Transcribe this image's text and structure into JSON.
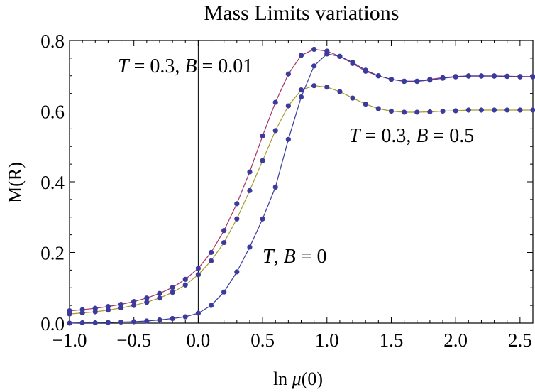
{
  "chart_data": {
    "type": "line",
    "title": "Mass Limits variations",
    "xlabel_prefix": "ln ",
    "xlabel_symbol": "μ",
    "xlabel_suffix": "(0)",
    "ylabel": "M(R)",
    "xlim": [
      -1.0,
      2.6
    ],
    "ylim": [
      0.0,
      0.8
    ],
    "xticks": [
      -1.0,
      -0.5,
      0.0,
      0.5,
      1.0,
      1.5,
      2.0,
      2.5
    ],
    "xtick_labels": [
      "−1.0",
      "−0.5",
      "0.0",
      "0.5",
      "1.0",
      "1.5",
      "2.0",
      "2.5"
    ],
    "yticks": [
      0.0,
      0.2,
      0.4,
      0.6,
      0.8
    ],
    "ytick_labels": [
      "0.0",
      "0.2",
      "0.4",
      "0.6",
      "0.8"
    ],
    "vertical_reference_line_x": 0.0,
    "marker_color": "#3b3b9e",
    "series": [
      {
        "label_parts": {
          "t": "T",
          "mid": " = 0.3, ",
          "b": "B",
          "end": " = 0.01"
        },
        "color": "#a8336a",
        "x": [
          -1.0,
          -0.9,
          -0.8,
          -0.7,
          -0.6,
          -0.5,
          -0.4,
          -0.3,
          -0.2,
          -0.1,
          0.0,
          0.1,
          0.2,
          0.3,
          0.4,
          0.5,
          0.6,
          0.7,
          0.8,
          0.9,
          1.0,
          1.1,
          1.2,
          1.3,
          1.4,
          1.5,
          1.6,
          1.7,
          1.8,
          1.9,
          2.0,
          2.1,
          2.2,
          2.3,
          2.4,
          2.5,
          2.6
        ],
        "y": [
          0.035,
          0.038,
          0.042,
          0.047,
          0.053,
          0.061,
          0.071,
          0.084,
          0.101,
          0.124,
          0.155,
          0.2,
          0.262,
          0.338,
          0.428,
          0.53,
          0.625,
          0.705,
          0.758,
          0.775,
          0.77,
          0.755,
          0.735,
          0.713,
          0.7,
          0.69,
          0.685,
          0.685,
          0.69,
          0.695,
          0.698,
          0.7,
          0.7,
          0.7,
          0.699,
          0.698,
          0.698
        ]
      },
      {
        "label_parts": {
          "t": "T",
          "mid": " = 0.3, ",
          "b": "B",
          "end": " = 0.5"
        },
        "color": "#a89a2a",
        "x": [
          -1.0,
          -0.9,
          -0.8,
          -0.7,
          -0.6,
          -0.5,
          -0.4,
          -0.3,
          -0.2,
          -0.1,
          0.0,
          0.1,
          0.2,
          0.3,
          0.4,
          0.5,
          0.6,
          0.7,
          0.8,
          0.9,
          1.0,
          1.1,
          1.2,
          1.3,
          1.4,
          1.5,
          1.6,
          1.7,
          1.8,
          1.9,
          2.0,
          2.1,
          2.2,
          2.3,
          2.4,
          2.5,
          2.6
        ],
        "y": [
          0.026,
          0.029,
          0.032,
          0.037,
          0.043,
          0.05,
          0.059,
          0.071,
          0.087,
          0.108,
          0.137,
          0.176,
          0.228,
          0.295,
          0.375,
          0.46,
          0.545,
          0.615,
          0.66,
          0.672,
          0.668,
          0.655,
          0.637,
          0.62,
          0.607,
          0.6,
          0.597,
          0.597,
          0.598,
          0.6,
          0.601,
          0.603,
          0.603,
          0.603,
          0.603,
          0.603,
          0.603
        ]
      },
      {
        "label_parts": {
          "t": "T",
          "mid": ", ",
          "b": "B",
          "end": " = 0"
        },
        "color": "#3b3b9e",
        "x": [
          -1.0,
          -0.9,
          -0.8,
          -0.7,
          -0.6,
          -0.5,
          -0.4,
          -0.3,
          -0.2,
          -0.1,
          0.0,
          0.1,
          0.2,
          0.3,
          0.4,
          0.5,
          0.6,
          0.7,
          0.8,
          0.9,
          1.0,
          1.1,
          1.2,
          1.3,
          1.4,
          1.5,
          1.6,
          1.7,
          1.8,
          1.9,
          2.0,
          2.1,
          2.2,
          2.3,
          2.4,
          2.5,
          2.6
        ],
        "y": [
          0.0,
          0.001,
          0.001,
          0.002,
          0.003,
          0.004,
          0.006,
          0.009,
          0.013,
          0.018,
          0.028,
          0.05,
          0.088,
          0.145,
          0.215,
          0.295,
          0.385,
          0.52,
          0.64,
          0.728,
          0.762,
          0.755,
          0.738,
          0.716,
          0.7,
          0.69,
          0.684,
          0.684,
          0.688,
          0.693,
          0.697,
          0.699,
          0.699,
          0.699,
          0.698,
          0.697,
          0.697
        ]
      }
    ]
  }
}
